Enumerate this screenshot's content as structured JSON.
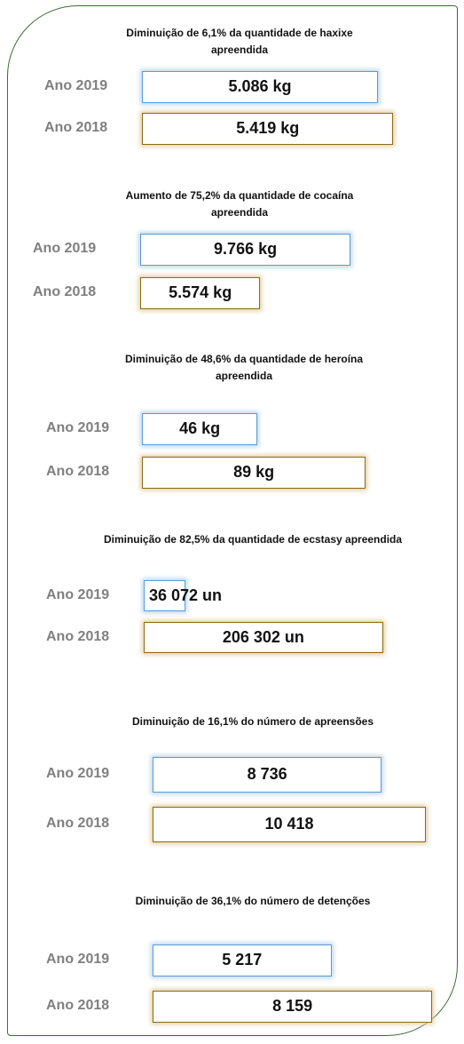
{
  "chart_data": [
    {
      "type": "bar",
      "orientation": "horizontal",
      "title": "Diminuição de 6,1% da quantidade de haxixe apreendida",
      "categories": [
        "Ano 2019",
        "Ano 2018"
      ],
      "values": [
        5086,
        5419
      ],
      "value_labels": [
        "5.086 kg",
        "5.419 kg"
      ],
      "colors": [
        "#5b9bd5",
        "#8b6a14"
      ],
      "xlim": [
        0,
        6500
      ]
    },
    {
      "type": "bar",
      "orientation": "horizontal",
      "title": "Aumento de 75,2% da quantidade de cocaína apreendida",
      "categories": [
        "Ano 2019",
        "Ano 2018"
      ],
      "values": [
        9766,
        5574
      ],
      "value_labels": [
        "9.766 kg",
        "5.574 kg"
      ],
      "colors": [
        "#5b9bd5",
        "#8b6a14"
      ],
      "xlim": [
        0,
        14000
      ]
    },
    {
      "type": "bar",
      "orientation": "horizontal",
      "title": "Diminuição de 48,6% da quantidade de heroína apreendida",
      "categories": [
        "Ano 2019",
        "Ano 2018"
      ],
      "values": [
        46,
        89
      ],
      "value_labels": [
        "46 kg",
        "89 kg"
      ],
      "colors": [
        "#5b9bd5",
        "#8b6a14"
      ],
      "xlim": [
        0,
        120
      ]
    },
    {
      "type": "bar",
      "orientation": "horizontal",
      "title": "Diminuição de 82,5% da quantidade de ecstasy apreendida",
      "categories": [
        "Ano 2019",
        "Ano 2018"
      ],
      "values": [
        36072,
        206302
      ],
      "value_labels": [
        "36 072 un",
        "206 302 un"
      ],
      "colors": [
        "#5b9bd5",
        "#8b6a14"
      ],
      "xlim": [
        0,
        260000
      ]
    },
    {
      "type": "bar",
      "orientation": "horizontal",
      "title": "Diminuição de 16,1% do número de apreensões",
      "categories": [
        "Ano 2019",
        "Ano 2018"
      ],
      "values": [
        8736,
        10418
      ],
      "value_labels": [
        "8 736",
        "10 418"
      ],
      "colors": [
        "#5b9bd5",
        "#8b6a14"
      ],
      "xlim": [
        0,
        11500
      ]
    },
    {
      "type": "bar",
      "orientation": "horizontal",
      "title": "Diminuição de 36,1% do número de detenções",
      "categories": [
        "Ano 2019",
        "Ano 2018"
      ],
      "values": [
        5217,
        8159
      ],
      "value_labels": [
        "5 217",
        "8 159"
      ],
      "colors": [
        "#5b9bd5",
        "#8b6a14"
      ],
      "xlim": [
        0,
        8800
      ]
    }
  ]
}
